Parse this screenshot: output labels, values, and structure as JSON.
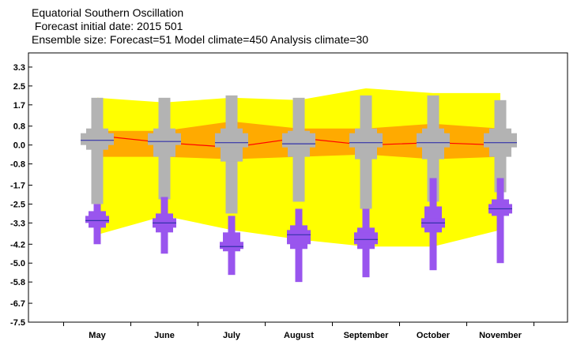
{
  "header": {
    "title": "Equatorial Southern Oscillation",
    "subtitle": " Forecast initial date: 2015 501",
    "ensemble": "Ensemble size: Forecast=51 Model climate=450 Analysis climate=30"
  },
  "chart_data": {
    "type": "box",
    "categories": [
      "May",
      "June",
      "July",
      "August",
      "September",
      "October",
      "November"
    ],
    "y_ticks": [
      "3.3",
      "2.5",
      "1.7",
      "0.8",
      "0.0",
      "-0.8",
      "-1.7",
      "-2.5",
      "-3.3",
      "-4.2",
      "-5.0",
      "-5.8",
      "-6.7",
      "-7.5"
    ],
    "ylim": [
      -7.5,
      3.9
    ],
    "colors": {
      "climate_range": "#ffff00",
      "climate_inner": "#ffaa00",
      "analysis_line": "#ff0000",
      "model_box": "#b3b3b3",
      "forecast_box": "#9955ee",
      "median": "#3333aa"
    },
    "model_climate": {
      "outer_top": [
        2.0,
        1.8,
        2.0,
        1.9,
        2.4,
        2.2,
        2.2
      ],
      "outer_bottom": [
        -3.8,
        -3.0,
        -3.6,
        -4.0,
        -4.3,
        -4.3,
        -3.6
      ],
      "inner_top": [
        0.6,
        0.6,
        1.0,
        0.7,
        0.7,
        0.9,
        0.7
      ],
      "inner_bottom": [
        -0.5,
        -0.5,
        -0.6,
        -0.5,
        -0.4,
        -0.6,
        -0.5
      ],
      "analysis": [
        0.4,
        0.1,
        -0.1,
        0.3,
        0.0,
        0.1,
        0.0
      ],
      "whisker_min": [
        -2.5,
        -2.3,
        -2.9,
        -2.4,
        -2.7,
        -2.4,
        -2.0
      ],
      "q10": [
        -0.2,
        -0.5,
        -0.7,
        -0.5,
        -0.6,
        -0.6,
        -0.5
      ],
      "q25": [
        0.0,
        0.0,
        -0.1,
        -0.1,
        -0.1,
        -0.1,
        -0.1
      ],
      "median": [
        0.2,
        0.15,
        0.1,
        0.05,
        0.1,
        0.1,
        0.1
      ],
      "q75": [
        0.5,
        0.5,
        0.5,
        0.5,
        0.5,
        0.5,
        0.5
      ],
      "q90": [
        0.7,
        0.7,
        0.7,
        0.6,
        0.7,
        0.7,
        0.7
      ],
      "whisker_max": [
        2.0,
        2.0,
        2.1,
        2.0,
        2.1,
        2.1,
        1.9
      ]
    },
    "forecast": {
      "whisker_min": [
        -4.2,
        -4.6,
        -5.5,
        -5.8,
        -5.6,
        -5.3,
        -5.0
      ],
      "q10": [
        -3.5,
        -3.7,
        -4.5,
        -4.4,
        -4.4,
        -3.7,
        -3.0
      ],
      "q25": [
        -3.3,
        -3.5,
        -4.4,
        -4.2,
        -4.2,
        -3.5,
        -2.9
      ],
      "median": [
        -3.2,
        -3.3,
        -4.3,
        -3.8,
        -4.0,
        -3.3,
        -2.7
      ],
      "q75": [
        -3.0,
        -3.1,
        -4.1,
        -3.6,
        -3.7,
        -3.1,
        -2.5
      ],
      "q90": [
        -2.8,
        -2.9,
        -3.7,
        -3.4,
        -3.5,
        -2.6,
        -2.3
      ],
      "whisker_max": [
        -2.5,
        -2.2,
        -3.0,
        -2.7,
        -2.7,
        -1.4,
        -1.4
      ]
    }
  }
}
